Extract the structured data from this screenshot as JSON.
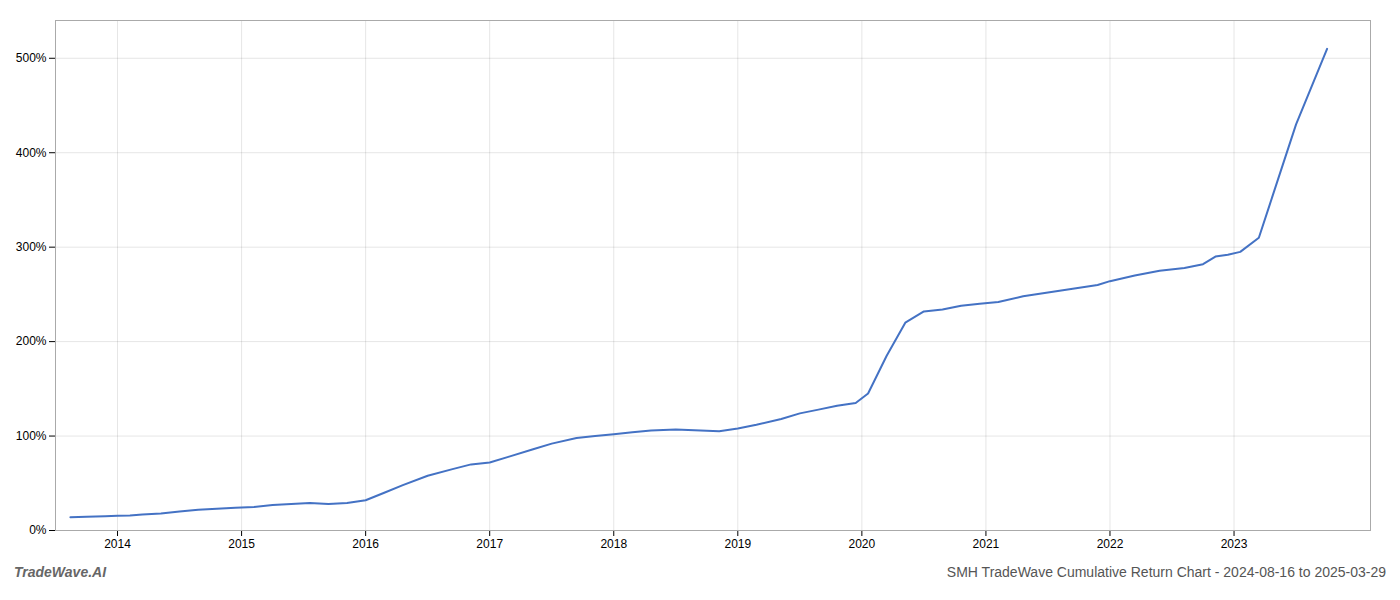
{
  "chart_data": {
    "type": "line",
    "title": "SMH TradeWave Cumulative Return Chart - 2024-08-16 to 2025-03-29",
    "annotations": [
      "TradeWave.AI"
    ],
    "x": [
      2013.62,
      2013.75,
      2013.9,
      2014.0,
      2014.1,
      2014.2,
      2014.35,
      2014.5,
      2014.65,
      2014.8,
      2014.95,
      2015.1,
      2015.25,
      2015.4,
      2015.55,
      2015.7,
      2015.85,
      2016.0,
      2016.15,
      2016.3,
      2016.5,
      2016.7,
      2016.85,
      2017.0,
      2017.15,
      2017.35,
      2017.5,
      2017.7,
      2017.85,
      2018.0,
      2018.15,
      2018.3,
      2018.5,
      2018.7,
      2018.85,
      2019.0,
      2019.15,
      2019.35,
      2019.5,
      2019.65,
      2019.8,
      2019.95,
      2020.05,
      2020.2,
      2020.35,
      2020.5,
      2020.65,
      2020.8,
      2020.95,
      2021.1,
      2021.3,
      2021.5,
      2021.7,
      2021.9,
      2022.0,
      2022.2,
      2022.4,
      2022.6,
      2022.75,
      2022.85,
      2022.95,
      2023.05,
      2023.2,
      2023.5,
      2023.75
    ],
    "values": [
      14,
      14.5,
      15,
      15.5,
      16,
      17,
      18,
      20,
      22,
      23,
      24,
      25,
      27,
      28,
      29,
      28,
      29,
      32,
      40,
      48,
      58,
      65,
      70,
      72,
      78,
      86,
      92,
      98,
      100,
      102,
      104,
      106,
      107,
      106,
      105,
      108,
      112,
      118,
      124,
      128,
      132,
      135,
      145,
      185,
      220,
      232,
      234,
      238,
      240,
      242,
      248,
      252,
      256,
      260,
      264,
      270,
      275,
      278,
      282,
      290,
      292,
      295,
      310,
      430,
      510
    ],
    "color": "#4472c4",
    "xlim": [
      2013.5,
      2024.1
    ],
    "xticks": [
      2014,
      2015,
      2016,
      2017,
      2018,
      2019,
      2020,
      2021,
      2022,
      2023
    ],
    "ylim": [
      0,
      540
    ],
    "yticks": [
      {
        "value": 0,
        "label": "0%"
      },
      {
        "value": 100,
        "label": "100%"
      },
      {
        "value": 200,
        "label": "200%"
      },
      {
        "value": 300,
        "label": "300%"
      },
      {
        "value": 400,
        "label": "400%"
      },
      {
        "value": 500,
        "label": "500%"
      }
    ],
    "grid": true
  }
}
